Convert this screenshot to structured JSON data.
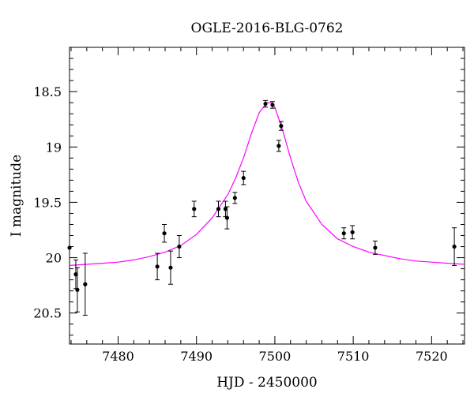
{
  "chart_data": {
    "type": "scatter",
    "title": "OGLE-2016-BLG-0762",
    "xlabel": "HJD - 2450000",
    "ylabel": "I magnitude",
    "xlim": [
      7473.8,
      7524.2
    ],
    "ylim": [
      20.78,
      18.1
    ],
    "y_inverted": true,
    "xticks": [
      7480,
      7490,
      7500,
      7510,
      7520
    ],
    "xtick_labels": [
      "7480",
      "7490",
      "7500",
      "7510",
      "7520"
    ],
    "yticks": [
      18.5,
      19,
      19.5,
      20,
      20.5
    ],
    "ytick_labels": [
      "18.5",
      "19",
      "19.5",
      "20",
      "20.5"
    ],
    "grid": false,
    "series": [
      {
        "kind": "points_with_errorbars",
        "color": "#000000",
        "points": [
          {
            "x": 7473.8,
            "y": 19.91,
            "err": 0.0
          },
          {
            "x": 7474.6,
            "y": 20.15,
            "err": 0.13
          },
          {
            "x": 7474.8,
            "y": 20.29,
            "err": 0.2
          },
          {
            "x": 7475.8,
            "y": 20.24,
            "err": 0.28
          },
          {
            "x": 7485.0,
            "y": 20.08,
            "err": 0.12
          },
          {
            "x": 7485.9,
            "y": 19.78,
            "err": 0.08
          },
          {
            "x": 7486.7,
            "y": 20.09,
            "err": 0.15
          },
          {
            "x": 7487.8,
            "y": 19.9,
            "err": 0.1
          },
          {
            "x": 7489.7,
            "y": 19.56,
            "err": 0.07
          },
          {
            "x": 7492.8,
            "y": 19.56,
            "err": 0.07
          },
          {
            "x": 7493.7,
            "y": 19.56,
            "err": 0.07
          },
          {
            "x": 7493.9,
            "y": 19.64,
            "err": 0.1
          },
          {
            "x": 7494.9,
            "y": 19.46,
            "err": 0.05
          },
          {
            "x": 7496.0,
            "y": 19.28,
            "err": 0.06
          },
          {
            "x": 7498.8,
            "y": 18.61,
            "err": 0.03
          },
          {
            "x": 7499.7,
            "y": 18.62,
            "err": 0.03
          },
          {
            "x": 7500.5,
            "y": 18.99,
            "err": 0.05
          },
          {
            "x": 7500.8,
            "y": 18.81,
            "err": 0.04
          },
          {
            "x": 7508.8,
            "y": 19.78,
            "err": 0.05
          },
          {
            "x": 7509.9,
            "y": 19.77,
            "err": 0.06
          },
          {
            "x": 7512.8,
            "y": 19.91,
            "err": 0.06
          },
          {
            "x": 7522.9,
            "y": 19.9,
            "err": 0.17
          }
        ]
      },
      {
        "kind": "model_curve",
        "color": "#ff00ff",
        "x": [
          7473.8,
          7476,
          7478,
          7480,
          7482,
          7484,
          7486,
          7488,
          7490,
          7492,
          7494,
          7495,
          7496,
          7497,
          7498,
          7499,
          7499.5,
          7500,
          7501,
          7502,
          7503,
          7504,
          7506,
          7508,
          7510,
          7512,
          7514,
          7516,
          7518,
          7520,
          7522,
          7524.2
        ],
        "y": [
          20.07,
          20.06,
          20.05,
          20.04,
          20.02,
          19.99,
          19.95,
          19.89,
          19.79,
          19.64,
          19.43,
          19.28,
          19.1,
          18.88,
          18.69,
          18.6,
          18.6,
          18.64,
          18.85,
          19.1,
          19.32,
          19.49,
          19.7,
          19.83,
          19.9,
          19.95,
          19.98,
          20.01,
          20.03,
          20.04,
          20.05,
          20.06
        ]
      }
    ]
  }
}
